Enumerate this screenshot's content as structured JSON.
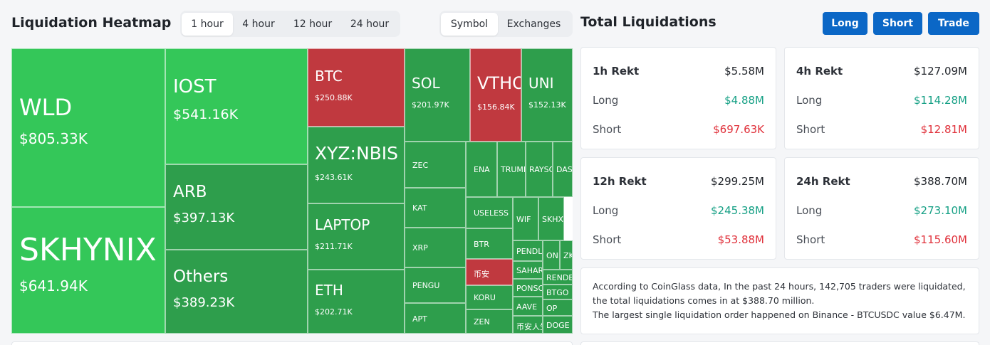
{
  "heatmap": {
    "title": "Liquidation Heatmap",
    "time_tabs": [
      {
        "label": "1 hour",
        "active": true
      },
      {
        "label": "4 hour",
        "active": false
      },
      {
        "label": "12 hour",
        "active": false
      },
      {
        "label": "24 hour",
        "active": false
      }
    ],
    "view_tabs": [
      {
        "label": "Symbol",
        "active": true
      },
      {
        "label": "Exchanges",
        "active": false
      }
    ],
    "colors": {
      "bright_green": "#34c759",
      "green": "#2e9e4c",
      "red": "#c0393f"
    },
    "tiles": [
      {
        "symbol": "WLD",
        "value": "$805.33K",
        "color": "bright_green"
      },
      {
        "symbol": "SKHYNIX",
        "value": "$641.94K",
        "color": "bright_green"
      },
      {
        "symbol": "IOST",
        "value": "$541.16K",
        "color": "bright_green"
      },
      {
        "symbol": "ARB",
        "value": "$397.13K",
        "color": "green"
      },
      {
        "symbol": "Others",
        "value": "$389.23K",
        "color": "green"
      },
      {
        "symbol": "BTC",
        "value": "$250.88K",
        "color": "red"
      },
      {
        "symbol": "XYZ:NBIS",
        "value": "$243.61K",
        "color": "green"
      },
      {
        "symbol": "LAPTOP",
        "value": "$211.71K",
        "color": "green"
      },
      {
        "symbol": "ETH",
        "value": "$202.71K",
        "color": "green"
      },
      {
        "symbol": "SOL",
        "value": "$201.97K",
        "color": "green"
      },
      {
        "symbol": "VTHO",
        "value": "$156.84K",
        "color": "red"
      },
      {
        "symbol": "UNI",
        "value": "$152.13K",
        "color": "green"
      },
      {
        "symbol": "ZEC",
        "value": "",
        "color": "green"
      },
      {
        "symbol": "KAT",
        "value": "",
        "color": "green"
      },
      {
        "symbol": "XRP",
        "value": "",
        "color": "green"
      },
      {
        "symbol": "PENGU",
        "value": "",
        "color": "green"
      },
      {
        "symbol": "APT",
        "value": "",
        "color": "green"
      },
      {
        "symbol": "ENA",
        "value": "",
        "color": "green"
      },
      {
        "symbol": "TRUMP",
        "value": "",
        "color": "green"
      },
      {
        "symbol": "RAYSOL",
        "value": "",
        "color": "green"
      },
      {
        "symbol": "DASH",
        "value": "",
        "color": "green"
      },
      {
        "symbol": "USELESS",
        "value": "",
        "color": "green"
      },
      {
        "symbol": "BTR",
        "value": "",
        "color": "green"
      },
      {
        "symbol": "币安",
        "value": "",
        "color": "red"
      },
      {
        "symbol": "KORU",
        "value": "",
        "color": "green"
      },
      {
        "symbol": "ZEN",
        "value": "",
        "color": "green"
      },
      {
        "symbol": "WIF",
        "value": "",
        "color": "green"
      },
      {
        "symbol": "SKHX",
        "value": "",
        "color": "green"
      },
      {
        "symbol": "PENDLE",
        "value": "",
        "color": "green"
      },
      {
        "symbol": "ONDO",
        "value": "",
        "color": "green"
      },
      {
        "symbol": "ZK",
        "value": "",
        "color": "green"
      },
      {
        "symbol": "SAHARA",
        "value": "",
        "color": "green"
      },
      {
        "symbol": "RENDER",
        "value": "",
        "color": "green"
      },
      {
        "symbol": "PONSO",
        "value": "",
        "color": "green"
      },
      {
        "symbol": "BTGO",
        "value": "",
        "color": "green"
      },
      {
        "symbol": "AAVE",
        "value": "",
        "color": "green"
      },
      {
        "symbol": "OP",
        "value": "",
        "color": "green"
      },
      {
        "symbol": "币安人生",
        "value": "",
        "color": "green"
      },
      {
        "symbol": "DOGE",
        "value": "",
        "color": "green"
      }
    ]
  },
  "total": {
    "title": "Total Liquidations",
    "buttons": [
      "Long",
      "Short",
      "Trade"
    ],
    "cards": [
      {
        "period": "1h Rekt",
        "total": "$5.58M",
        "long_label": "Long",
        "long": "$4.88M",
        "short_label": "Short",
        "short": "$697.63K"
      },
      {
        "period": "4h Rekt",
        "total": "$127.09M",
        "long_label": "Long",
        "long": "$114.28M",
        "short_label": "Short",
        "short": "$12.81M"
      },
      {
        "period": "12h Rekt",
        "total": "$299.25M",
        "long_label": "Long",
        "long": "$245.38M",
        "short_label": "Short",
        "short": "$53.88M"
      },
      {
        "period": "24h Rekt",
        "total": "$388.70M",
        "long_label": "Long",
        "long": "$273.10M",
        "short_label": "Short",
        "short": "$115.60M"
      }
    ],
    "summary_line1": "According to CoinGlass data, In the past 24 hours, 142,705 traders were liquidated, the total liquidations comes in at $388.70 million.",
    "summary_line2": "The largest single liquidation order happened on Binance - BTCUSDC value $6.47M."
  }
}
